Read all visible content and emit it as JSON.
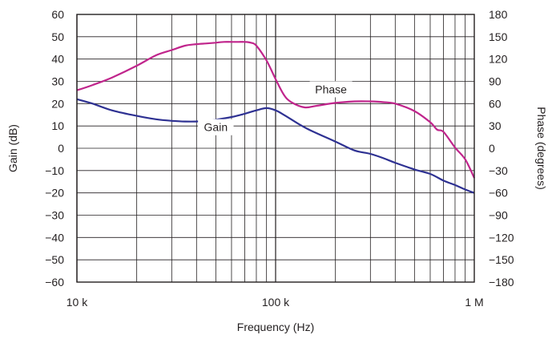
{
  "chart_data": {
    "type": "line",
    "xlabel": "Frequency (Hz)",
    "ylabel": "Gain (dB)",
    "y2label": "Phase (degrees)",
    "x_scale": "log",
    "xlim": [
      10000,
      1000000
    ],
    "ylim": [
      -60,
      60
    ],
    "y2lim": [
      -180,
      180
    ],
    "grid": true,
    "x_tick_values": [
      10000,
      100000,
      1000000
    ],
    "x_ticks": [
      "10 k",
      "100 k",
      "1 M"
    ],
    "y_ticks": [
      "60",
      "50",
      "40",
      "30",
      "20",
      "10",
      "0",
      "−10",
      "−20",
      "−30",
      "−40",
      "−50",
      "−60"
    ],
    "y2_ticks": [
      "180",
      "150",
      "120",
      "90",
      "60",
      "30",
      "0",
      "−30",
      "−60",
      "−90",
      "−120",
      "−150",
      "−180"
    ],
    "series": [
      {
        "name": "Gain",
        "axis": "left",
        "color": "#2e3192",
        "x": [
          10000,
          12000,
          15000,
          20000,
          25000,
          30000,
          35000,
          40000,
          45000,
          50000,
          60000,
          70000,
          80000,
          90000,
          100000,
          110000,
          130000,
          150000,
          200000,
          250000,
          300000,
          350000,
          400000,
          500000,
          600000,
          700000,
          800000,
          900000,
          1000000
        ],
        "values": [
          22,
          20,
          17,
          14.5,
          13,
          12.3,
          12,
          12,
          12.3,
          12.8,
          14,
          15.5,
          17,
          18,
          17,
          15,
          11,
          8,
          3,
          -1,
          -2.5,
          -4.5,
          -6.5,
          -9.5,
          -11.5,
          -14.5,
          -16.5,
          -18.5,
          -20
        ]
      },
      {
        "name": "Phase",
        "axis": "right",
        "color": "#c0258c",
        "x": [
          10000,
          12000,
          15000,
          20000,
          25000,
          30000,
          35000,
          40000,
          45000,
          50000,
          55000,
          60000,
          65000,
          70000,
          75000,
          80000,
          90000,
          100000,
          110000,
          120000,
          140000,
          160000,
          200000,
          250000,
          300000,
          350000,
          400000,
          500000,
          600000,
          650000,
          700000,
          800000,
          900000,
          1000000
        ],
        "values": [
          78,
          85,
          95,
          111,
          125,
          132,
          138,
          140,
          141,
          142,
          143,
          143,
          143,
          143,
          142,
          138,
          118,
          93,
          72,
          62,
          55,
          57,
          61,
          63,
          63,
          62,
          60,
          50,
          35,
          25,
          22,
          1,
          -15,
          -40
        ]
      }
    ],
    "series_labels": [
      {
        "text": "Phase",
        "series": 1,
        "x": 190000,
        "y": 25
      },
      {
        "text": "Gain",
        "series": 0,
        "x": 50000,
        "y": 8
      }
    ]
  }
}
